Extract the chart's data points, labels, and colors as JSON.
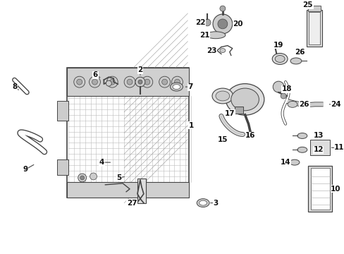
{
  "bg_color": "#ffffff",
  "fig_width": 4.89,
  "fig_height": 3.6,
  "dpi": 100,
  "line_color": "#444444",
  "part_color": "#888888",
  "label_fontsize": 7.5,
  "callout_fontsize": 7.5
}
